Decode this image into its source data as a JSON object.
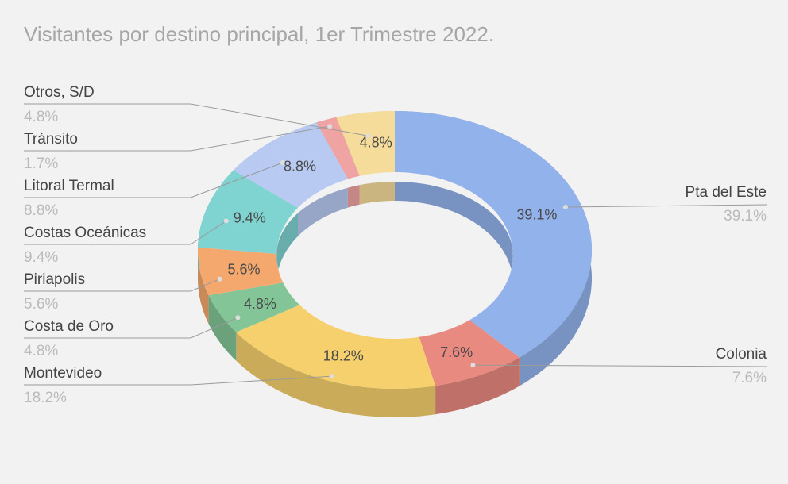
{
  "chart_data": {
    "type": "pie",
    "donut": true,
    "title": "Visitantes por destino principal, 1er Trimestre 2022.",
    "categories": [
      "Pta del Este",
      "Colonia",
      "Montevideo",
      "Costa de Oro",
      "Piriapolis",
      "Costas Oceánicas",
      "Litoral Termal",
      "Tránsito",
      "Otros, S/D"
    ],
    "values": [
      39.1,
      7.6,
      18.2,
      4.8,
      5.6,
      9.4,
      8.8,
      1.7,
      4.8
    ],
    "value_labels": [
      "39.1%",
      "7.6%",
      "18.2%",
      "4.8%",
      "5.6%",
      "9.4%",
      "8.8%",
      "1.7%",
      "4.8%"
    ],
    "colors": [
      "#92b2ec",
      "#e98a80",
      "#f6d06c",
      "#83c596",
      "#f5a86e",
      "#7fd3d1",
      "#b8caf2",
      "#f0a3a3",
      "#f6dc9b"
    ]
  }
}
